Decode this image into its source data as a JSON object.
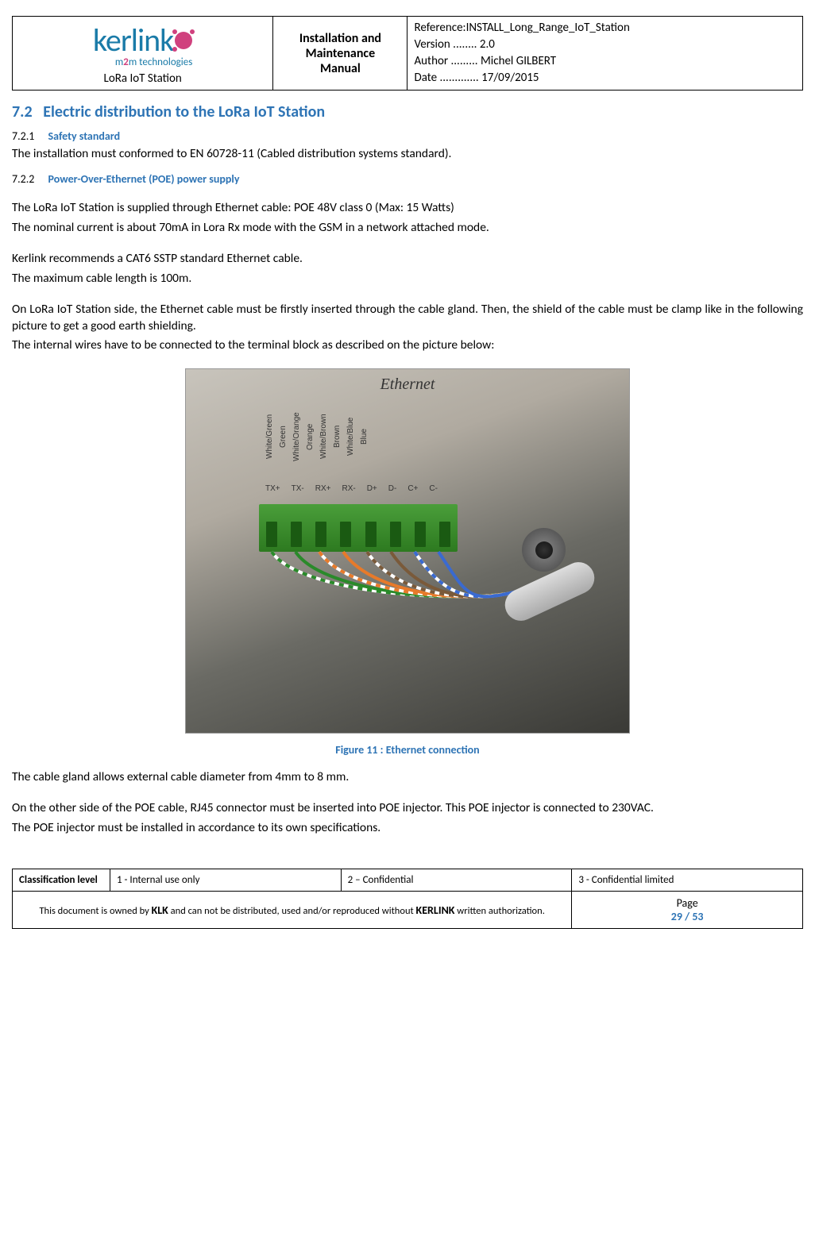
{
  "header": {
    "brand_name": "kerlink",
    "brand_sub_pre": "m",
    "brand_sub_mid": "2",
    "brand_sub_post": "m technologies",
    "product": "LoRa IoT Station",
    "doc_title_line1": "Installation and",
    "doc_title_line2": "Maintenance",
    "doc_title_line3": "Manual",
    "ref_label": "Reference:",
    "ref_value": "INSTALL_Long_Range_IoT_Station",
    "version_label": "Version ........",
    "version_value": "2.0",
    "author_label": "Author .........",
    "author_value": "Michel GILBERT",
    "date_label": "Date .............",
    "date_value": "17/09/2015"
  },
  "section": {
    "num": "7.2",
    "title": "Electric distribution to the LoRa IoT Station"
  },
  "sub1": {
    "num": "7.2.1",
    "title": "Safety standard",
    "body1": "The installation must conformed to EN 60728-11 (Cabled distribution systems standard)."
  },
  "sub2": {
    "num": "7.2.2",
    "title": "Power-Over-Ethernet (POE) power supply",
    "p1": "The LoRa IoT Station is supplied through Ethernet cable: POE 48V class 0 (Max: 15 Watts)",
    "p2": "The nominal current is about 70mA in Lora Rx mode with the GSM in a network attached mode.",
    "p3": "Kerlink recommends a CAT6 SSTP standard Ethernet cable.",
    "p4": "The maximum cable length is 100m.",
    "p5": "On LoRa IoT Station side, the Ethernet cable must be firstly inserted through the cable gland. Then, the shield of the cable must be clamp like in the following picture to get a good earth shielding.",
    "p6": "The internal wires have to be connected to the terminal block as described on the picture below:"
  },
  "figure": {
    "top_label": "Ethernet",
    "wire_labels": [
      "White/Green",
      "Green",
      "White/Orange",
      "Orange",
      "White/Brown",
      "Brown",
      "White/Blue",
      "Blue"
    ],
    "pin_labels": [
      "TX+",
      "TX-",
      "RX+",
      "RX-",
      "D+",
      "D-",
      "C+",
      "C-"
    ],
    "wire_colors": [
      "#fff",
      "#2a8a2a",
      "#fff",
      "#e77a2a",
      "#fff",
      "#7a5a3a",
      "#fff",
      "#3a6ad0"
    ],
    "wire_stripe": [
      "#2a8a2a",
      null,
      "#e77a2a",
      null,
      "#7a5a3a",
      null,
      "#3a6ad0",
      null
    ],
    "caption": "Figure 11 : Ethernet connection"
  },
  "post_figure": {
    "p1": "The cable gland allows external cable diameter from 4mm to 8 mm.",
    "p2": "On the other side of the POE cable, RJ45 connector must be inserted into POE injector. This POE injector is connected to 230VAC.",
    "p3": "The POE injector must be installed in accordance to its own specifications."
  },
  "footer": {
    "class_label": "Classification level",
    "opt1": "1 - Internal use only",
    "opt2": "2 – Confidential",
    "opt3": "3 - Confidential limited",
    "owner_pre": "This document is owned by ",
    "owner_klk": "KLK",
    "owner_mid": " and can not be distributed, used and/or reproduced  without ",
    "owner_kerlink": "KERLINK",
    "owner_post": "  written authorization.",
    "page_label": "Page",
    "page_current": "29",
    "page_sep": " / ",
    "page_total": "53"
  },
  "colors": {
    "heading_blue": "#2e74b5",
    "brand_blue": "#1a7ba8",
    "brand_pink": "#d0417e",
    "select_red": "#d00000"
  }
}
